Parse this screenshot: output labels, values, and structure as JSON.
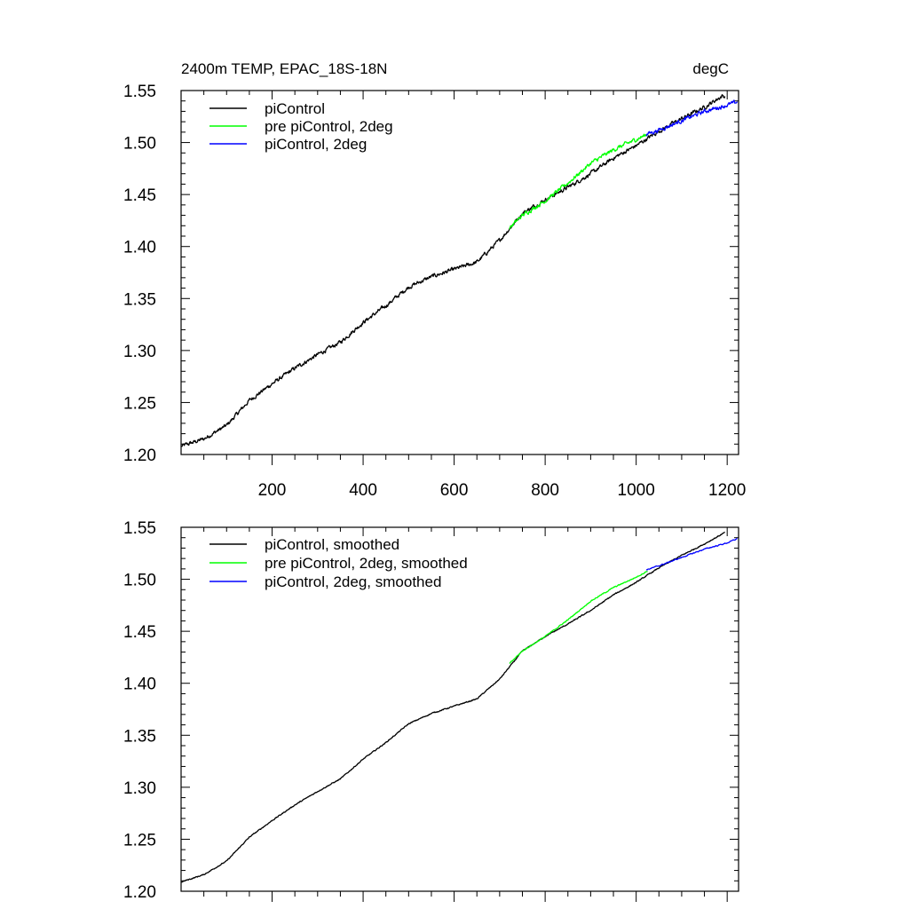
{
  "chart_data": [
    {
      "type": "line",
      "title": "2400m TEMP, EPAC_18S-18N",
      "units": "degC",
      "xlim": [
        0,
        1225
      ],
      "ylim": [
        1.2,
        1.55
      ],
      "x_ticks": [
        200,
        400,
        600,
        800,
        1000,
        1200
      ],
      "x_tick_labels": [
        "200",
        "400",
        "600",
        "800",
        "1000",
        "1200"
      ],
      "y_ticks": [
        1.2,
        1.25,
        1.3,
        1.35,
        1.4,
        1.45,
        1.5,
        1.55
      ],
      "y_tick_labels": [
        "1.20",
        "1.25",
        "1.30",
        "1.35",
        "1.40",
        "1.45",
        "1.50",
        "1.55"
      ],
      "grid": false,
      "legend_position": "top-left",
      "series": [
        {
          "name": "piControl",
          "color": "#000000",
          "noise": 0.003,
          "points": [
            [
              1,
              1.208
            ],
            [
              50,
              1.215
            ],
            [
              100,
              1.228
            ],
            [
              150,
              1.252
            ],
            [
              200,
              1.268
            ],
            [
              250,
              1.283
            ],
            [
              300,
              1.296
            ],
            [
              350,
              1.308
            ],
            [
              400,
              1.327
            ],
            [
              450,
              1.343
            ],
            [
              500,
              1.361
            ],
            [
              550,
              1.371
            ],
            [
              600,
              1.378
            ],
            [
              650,
              1.385
            ],
            [
              700,
              1.406
            ],
            [
              750,
              1.432
            ],
            [
              800,
              1.445
            ],
            [
              850,
              1.457
            ],
            [
              900,
              1.47
            ],
            [
              950,
              1.485
            ],
            [
              1000,
              1.497
            ],
            [
              1050,
              1.511
            ],
            [
              1100,
              1.523
            ],
            [
              1150,
              1.534
            ],
            [
              1190,
              1.545
            ],
            [
              1195,
              1.544
            ]
          ]
        },
        {
          "name": "pre piControl, 2deg",
          "color": "#00ff00",
          "noise": 0.003,
          "points": [
            [
              722,
              1.418
            ],
            [
              750,
              1.43
            ],
            [
              800,
              1.444
            ],
            [
              850,
              1.461
            ],
            [
              900,
              1.48
            ],
            [
              950,
              1.493
            ],
            [
              1000,
              1.503
            ],
            [
              1025,
              1.508
            ]
          ]
        },
        {
          "name": "piControl, 2deg",
          "color": "#0000ff",
          "noise": 0.003,
          "points": [
            [
              1022,
              1.508
            ],
            [
              1050,
              1.512
            ],
            [
              1100,
              1.521
            ],
            [
              1150,
              1.53
            ],
            [
              1200,
              1.536
            ],
            [
              1222,
              1.539
            ]
          ]
        }
      ]
    },
    {
      "type": "line",
      "title": "",
      "units": "",
      "xlim": [
        0,
        1225
      ],
      "ylim": [
        1.2,
        1.55
      ],
      "x_ticks": [
        200,
        400,
        600,
        800,
        1000,
        1200
      ],
      "x_tick_labels": [],
      "y_ticks": [
        1.2,
        1.25,
        1.3,
        1.35,
        1.4,
        1.45,
        1.5,
        1.55
      ],
      "y_tick_labels": [
        "1.20",
        "1.25",
        "1.30",
        "1.35",
        "1.40",
        "1.45",
        "1.50",
        "1.55"
      ],
      "grid": false,
      "legend_position": "top-left",
      "series": [
        {
          "name": "piControl, smoothed",
          "color": "#000000",
          "noise": 0.0008,
          "points": [
            [
              1,
              1.209
            ],
            [
              50,
              1.216
            ],
            [
              100,
              1.229
            ],
            [
              150,
              1.252
            ],
            [
              200,
              1.268
            ],
            [
              250,
              1.283
            ],
            [
              300,
              1.296
            ],
            [
              350,
              1.308
            ],
            [
              400,
              1.327
            ],
            [
              450,
              1.343
            ],
            [
              500,
              1.361
            ],
            [
              550,
              1.371
            ],
            [
              600,
              1.378
            ],
            [
              650,
              1.385
            ],
            [
              700,
              1.404
            ],
            [
              750,
              1.431
            ],
            [
              800,
              1.445
            ],
            [
              850,
              1.457
            ],
            [
              900,
              1.47
            ],
            [
              950,
              1.485
            ],
            [
              1000,
              1.497
            ],
            [
              1050,
              1.511
            ],
            [
              1100,
              1.523
            ],
            [
              1150,
              1.534
            ],
            [
              1195,
              1.545
            ]
          ]
        },
        {
          "name": "pre piControl, 2deg, smoothed",
          "color": "#00ff00",
          "noise": 0.0008,
          "points": [
            [
              722,
              1.419
            ],
            [
              750,
              1.431
            ],
            [
              800,
              1.445
            ],
            [
              850,
              1.461
            ],
            [
              900,
              1.479
            ],
            [
              950,
              1.492
            ],
            [
              1000,
              1.502
            ],
            [
              1025,
              1.508
            ]
          ]
        },
        {
          "name": "piControl, 2deg, smoothed",
          "color": "#0000ff",
          "noise": 0.0008,
          "points": [
            [
              1022,
              1.509
            ],
            [
              1050,
              1.513
            ],
            [
              1100,
              1.521
            ],
            [
              1150,
              1.529
            ],
            [
              1200,
              1.535
            ],
            [
              1222,
              1.539
            ]
          ]
        }
      ]
    }
  ]
}
